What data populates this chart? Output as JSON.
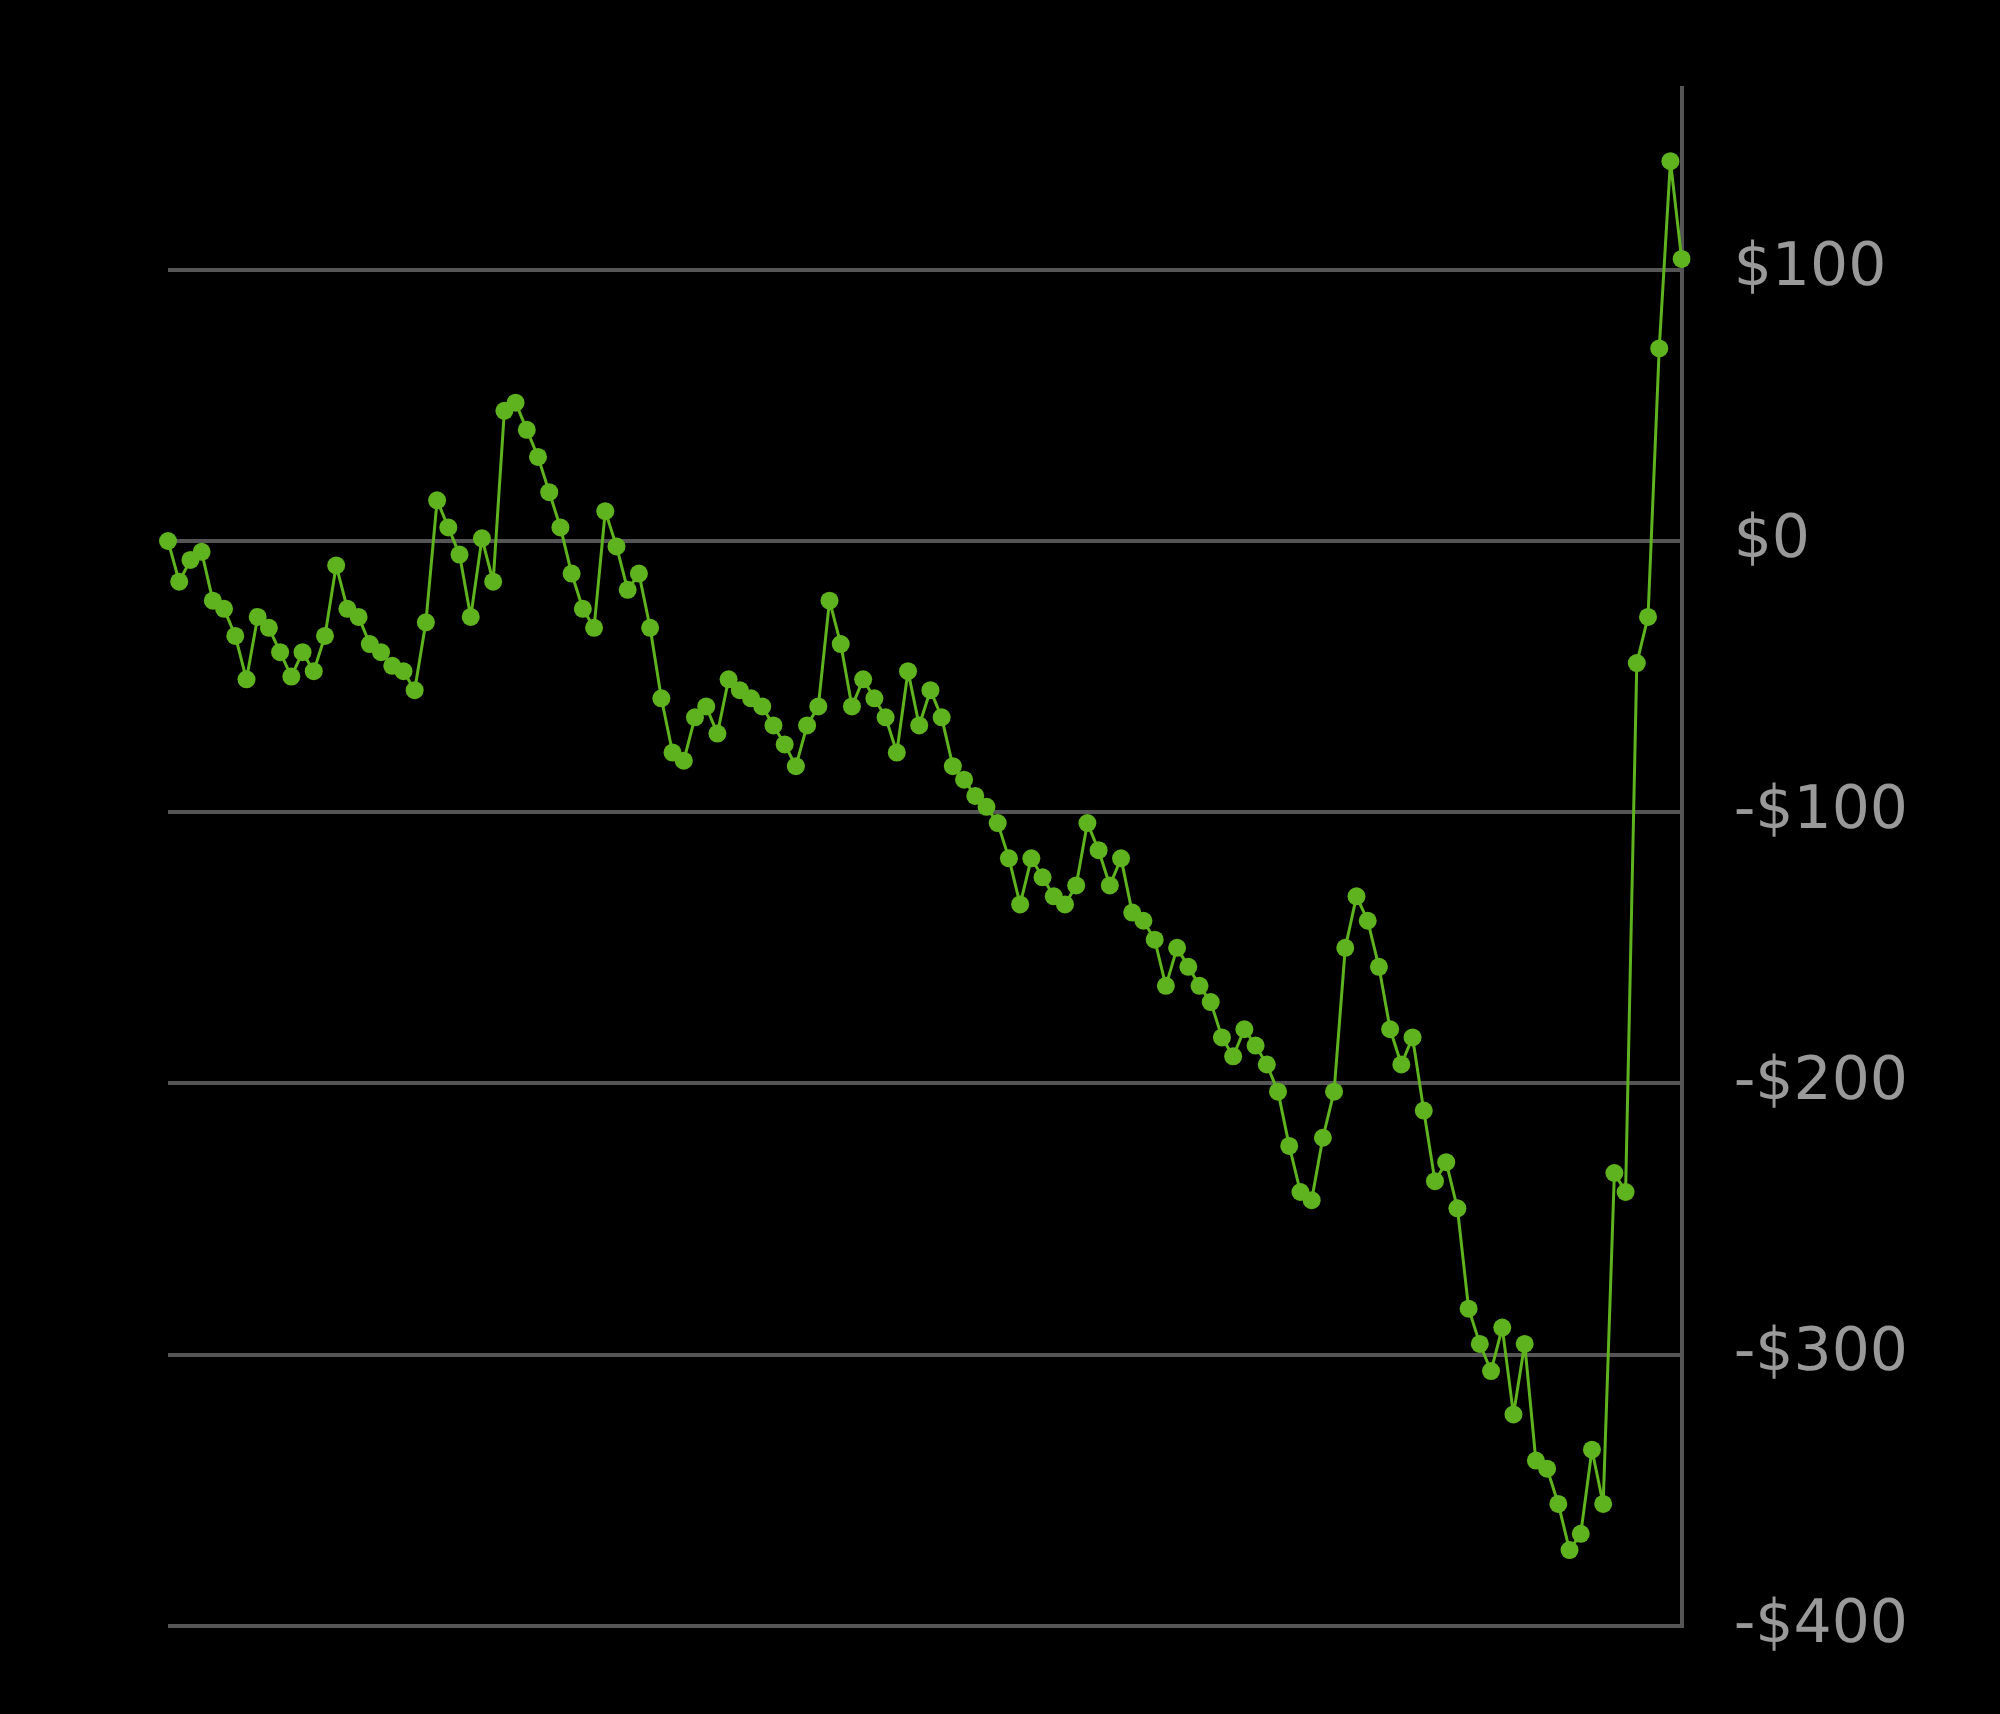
{
  "chart_data": {
    "type": "line",
    "categories": [
      null,
      null,
      null,
      null,
      null,
      null,
      null,
      null,
      null,
      null,
      null,
      null,
      null,
      null,
      null,
      null,
      null,
      null,
      null,
      null,
      null,
      null,
      null,
      null,
      null,
      null,
      null,
      null,
      null,
      null,
      null,
      null,
      null,
      null,
      null,
      null,
      null,
      null,
      null,
      null,
      null,
      null,
      null,
      null,
      null,
      null,
      null,
      null,
      null,
      null,
      null,
      null,
      null,
      null,
      null,
      null,
      null,
      null,
      null,
      null,
      null,
      null,
      null,
      null,
      null,
      null,
      null,
      null,
      null,
      null,
      null,
      null,
      null,
      null,
      null,
      null,
      null,
      null,
      null,
      null,
      null,
      null,
      null,
      null,
      null,
      null,
      null,
      null,
      null,
      null,
      null,
      null,
      null,
      null,
      null,
      null,
      null,
      null,
      null,
      null,
      null,
      null,
      null,
      null,
      null,
      null,
      null,
      null,
      null,
      null,
      null,
      null,
      null,
      null,
      null,
      null,
      null,
      null,
      null,
      null,
      null,
      null,
      null,
      null,
      null,
      null,
      null,
      null,
      null,
      null,
      null,
      null,
      null,
      null,
      null,
      null
    ],
    "series": [
      {
        "color": "#5fb31f",
        "values": [
          0,
          -15,
          -7,
          -4,
          -22,
          -25,
          -35,
          -51,
          -28,
          -32,
          -41,
          -50,
          -41,
          -48,
          -35,
          -9,
          -25,
          -28,
          -38,
          -41,
          -46,
          -48,
          -55,
          -30,
          15,
          5,
          -5,
          -28,
          1,
          -15,
          48,
          51,
          41,
          31,
          18,
          5,
          -12,
          -25,
          -32,
          11,
          -2,
          -18,
          -12,
          -32,
          -58,
          -78,
          -81,
          -65,
          -61,
          -71,
          -51,
          -55,
          -58,
          -61,
          -68,
          -75,
          -83,
          -68,
          -61,
          -22,
          -38,
          -61,
          -51,
          -58,
          -65,
          -78,
          -48,
          -68,
          -55,
          -65,
          -83,
          -88,
          -94,
          -98,
          -104,
          -117,
          -134,
          -117,
          -124,
          -131,
          -134,
          -127,
          -104,
          -114,
          -127,
          -117,
          -137,
          -140,
          -147,
          -164,
          -150,
          -157,
          -164,
          -170,
          -183,
          -190,
          -180,
          -186,
          -193,
          -203,
          -223,
          -240,
          -243,
          -220,
          -203,
          -150,
          -131,
          -140,
          -157,
          -180,
          -193,
          -183,
          -210,
          -236,
          -229,
          -246,
          -283,
          -296,
          -306,
          -290,
          -322,
          -296,
          -339,
          -342,
          -355,
          -372,
          -366,
          -335,
          -355,
          -233,
          -240,
          -45,
          -28,
          71,
          140,
          104
        ]
      }
    ],
    "ylim": [
      -400,
      167
    ],
    "yticks": [
      {
        "value": -400,
        "label": "-$400"
      },
      {
        "value": -300,
        "label": "-$300"
      },
      {
        "value": -200,
        "label": "-$200"
      },
      {
        "value": -100,
        "label": "-$100"
      },
      {
        "value": 0,
        "label": "$0"
      },
      {
        "value": 100,
        "label": "$100"
      }
    ],
    "grid": "y",
    "legend": false,
    "marker": "circle",
    "line_style": "solid",
    "tick_labels": "y"
  }
}
